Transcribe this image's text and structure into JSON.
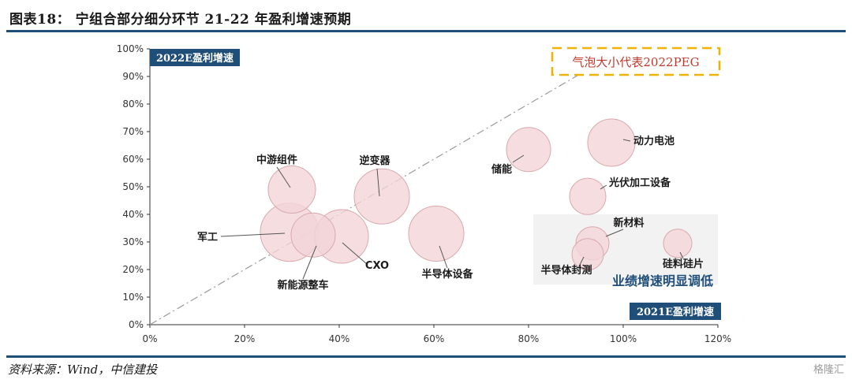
{
  "figure": {
    "title": "图表18： 宁组合部分细分环节 21-22 年盈利增速预期",
    "source": "资料来源：Wind，中信建投",
    "watermark": "格隆汇"
  },
  "colors": {
    "accent": "#1f4e79",
    "bubble_fill": "#f2d5d8",
    "bubble_stroke": "#d9a9ad",
    "legend_border": "#f0b400",
    "zone_fill": "#f2f2f2",
    "diagonal": "#9a9a9a"
  },
  "chart_data": {
    "type": "scatter",
    "bubble": true,
    "xlabel": "2021E盈利增速",
    "ylabel": "2022E盈利增速",
    "size_legend": "气泡大小代表2022PEG",
    "zone_label": "业绩增速明显调低",
    "xlim": [
      0,
      120
    ],
    "ylim": [
      0,
      100
    ],
    "xticks": [
      "0%",
      "20%",
      "40%",
      "60%",
      "80%",
      "100%",
      "120%"
    ],
    "yticks": [
      "0%",
      "10%",
      "20%",
      "30%",
      "40%",
      "50%",
      "60%",
      "70%",
      "80%",
      "90%",
      "100%"
    ],
    "reference_line": "y = x",
    "grid": false,
    "points": [
      {
        "name": "中游组件",
        "x": 30,
        "y": 49,
        "size": 30
      },
      {
        "name": "逆变器",
        "x": 49,
        "y": 46.5,
        "size": 35
      },
      {
        "name": "军工",
        "x": 29.5,
        "y": 33.5,
        "size": 37
      },
      {
        "name": "新能源整车",
        "x": 34.5,
        "y": 32.5,
        "size": 28
      },
      {
        "name": "CXO",
        "x": 40.5,
        "y": 32,
        "size": 34
      },
      {
        "name": "半导体设备",
        "x": 60.5,
        "y": 33,
        "size": 35
      },
      {
        "name": "储能",
        "x": 80,
        "y": 63.5,
        "size": 28
      },
      {
        "name": "动力电池",
        "x": 97.5,
        "y": 66,
        "size": 30
      },
      {
        "name": "光伏加工设备",
        "x": 92.5,
        "y": 46.5,
        "size": 23
      },
      {
        "name": "新材料",
        "x": 93.5,
        "y": 29.5,
        "size": 21
      },
      {
        "name": "半导体封测",
        "x": 92.5,
        "y": 25.5,
        "size": 20
      },
      {
        "name": "硅料硅片",
        "x": 111.5,
        "y": 29.5,
        "size": 18
      }
    ]
  }
}
